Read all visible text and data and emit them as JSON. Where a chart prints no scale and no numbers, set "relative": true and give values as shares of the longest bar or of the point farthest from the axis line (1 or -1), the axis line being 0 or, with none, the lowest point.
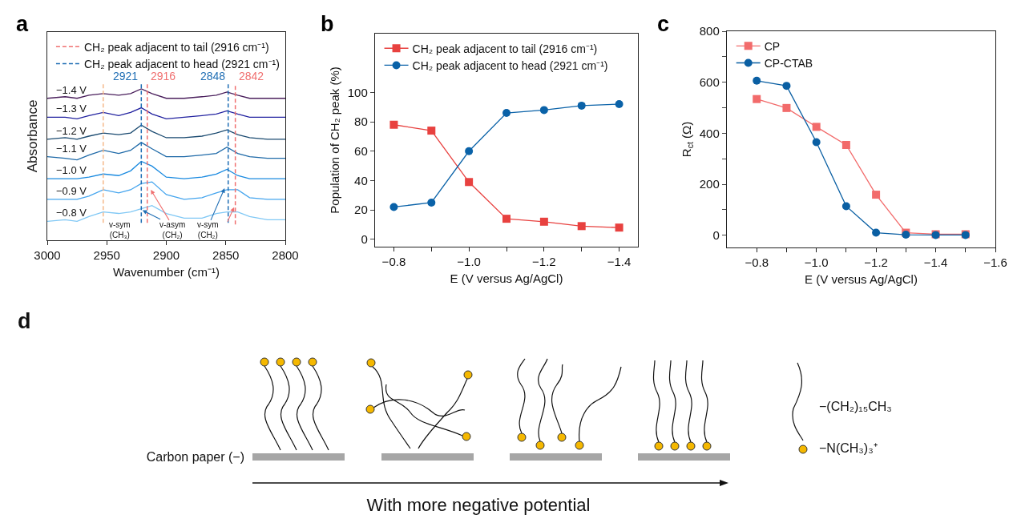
{
  "chart_data": [
    {
      "type": "line",
      "title": "a",
      "xlabel": "Wavenumber (cm⁻¹)",
      "ylabel": "Absorbance",
      "relative": true,
      "marker": "none",
      "legend": "top",
      "x": [
        3000,
        2985,
        2975,
        2965,
        2953,
        2940,
        2930,
        2921,
        2912,
        2900,
        2885,
        2870,
        2858,
        2849,
        2840,
        2830,
        2815,
        2800
      ],
      "xlim": [
        3000,
        2800
      ],
      "xticks": [
        3000,
        2950,
        2900,
        2850,
        2800
      ],
      "series": [
        {
          "name": "−1.4 V",
          "color": "#4a1f5c",
          "values": [
            0.9,
            0.91,
            0.9,
            0.92,
            0.93,
            0.92,
            0.93,
            0.96,
            0.93,
            0.9,
            0.9,
            0.91,
            0.92,
            0.94,
            0.92,
            0.9,
            0.9,
            0.9
          ]
        },
        {
          "name": "−1.3 V",
          "color": "#2222a0",
          "values": [
            0.78,
            0.78,
            0.77,
            0.79,
            0.81,
            0.79,
            0.81,
            0.84,
            0.8,
            0.77,
            0.78,
            0.79,
            0.8,
            0.82,
            0.8,
            0.78,
            0.78,
            0.78
          ]
        },
        {
          "name": "−1.2 V",
          "color": "#1a4a70",
          "values": [
            0.64,
            0.65,
            0.64,
            0.66,
            0.68,
            0.67,
            0.68,
            0.73,
            0.69,
            0.65,
            0.65,
            0.66,
            0.68,
            0.7,
            0.67,
            0.65,
            0.64,
            0.64
          ]
        },
        {
          "name": "−1.1 V",
          "color": "#1f6aa8",
          "values": [
            0.53,
            0.52,
            0.51,
            0.54,
            0.57,
            0.55,
            0.57,
            0.62,
            0.58,
            0.53,
            0.53,
            0.54,
            0.55,
            0.59,
            0.55,
            0.53,
            0.52,
            0.52
          ]
        },
        {
          "name": "−1.0 V",
          "color": "#1a8ae0",
          "values": [
            0.39,
            0.39,
            0.39,
            0.4,
            0.42,
            0.41,
            0.44,
            0.5,
            0.47,
            0.4,
            0.39,
            0.4,
            0.42,
            0.45,
            0.41,
            0.39,
            0.39,
            0.39
          ]
        },
        {
          "name": "−0.9 V",
          "color": "#45a5ee",
          "values": [
            0.26,
            0.26,
            0.26,
            0.28,
            0.32,
            0.3,
            0.32,
            0.36,
            0.37,
            0.29,
            0.26,
            0.27,
            0.3,
            0.32,
            0.32,
            0.27,
            0.26,
            0.26
          ]
        },
        {
          "name": "−0.8 V",
          "color": "#80c8f5",
          "values": [
            0.12,
            0.13,
            0.12,
            0.15,
            0.18,
            0.17,
            0.18,
            0.2,
            0.22,
            0.17,
            0.14,
            0.14,
            0.17,
            0.18,
            0.18,
            0.15,
            0.13,
            0.13
          ]
        },
        {
          "name": "CH₂ peak adjacent to tail (2916 cm⁻¹)",
          "color": "#f07070",
          "line_style": "dashed",
          "x": [
            2916,
            2916,
            null,
            2842,
            2842
          ],
          "values": [
            0.11,
            0.99,
            null,
            0.1,
            0.99
          ]
        },
        {
          "name": "CH₂ peak adjacent to head (2921 cm⁻¹)",
          "color": "#1f6eb4",
          "line_style": "dashed",
          "x": [
            2921,
            2921,
            null,
            2848,
            2848
          ],
          "values": [
            0.11,
            1,
            null,
            0.11,
            1
          ]
        },
        {
          "color": "#f5b98a",
          "line_style": "dashed",
          "x": [
            2953,
            2953
          ],
          "values": [
            0.11,
            1
          ]
        }
      ],
      "annotations": [
        "2921",
        "2916",
        "2848",
        "2842",
        "v-sym\n(CH₃)",
        "v-asym\n(CH₂)",
        "v-sym\n(CH₂)"
      ]
    },
    {
      "type": "line",
      "title": "b",
      "xlabel": "E (V versus Ag/AgCl)",
      "ylabel": "Population of CH₂ peak (%)",
      "legend": "top left",
      "x": [
        -0.8,
        -0.9,
        -1.0,
        -1.1,
        -1.2,
        -1.3,
        -1.4
      ],
      "xlim": [
        -0.75,
        -1.45
      ],
      "xticks": [
        {
          "value": -0.8,
          "label": "−0.8"
        },
        {
          "value": -0.9,
          "label": null
        },
        {
          "value": -1.0,
          "label": "−1.0"
        },
        {
          "value": -1.1,
          "label": null
        },
        {
          "value": -1.2,
          "label": "−1.2"
        },
        {
          "value": -1.3,
          "label": null
        },
        {
          "value": -1.4,
          "label": "−1.4"
        }
      ],
      "ylim": [
        -5,
        140
      ],
      "yticks": [
        0,
        20,
        40,
        60,
        80,
        100
      ],
      "series": [
        {
          "name": "CH₂ peak adjacent to tail (2916 cm⁻¹)",
          "color": "#e8413f",
          "marker": "square",
          "values": [
            78,
            74,
            39,
            14,
            12,
            9,
            8
          ]
        },
        {
          "name": "CH₂ peak adjacent to head (2921 cm⁻¹)",
          "color": "#0a62a8",
          "marker": "circle",
          "values": [
            22,
            25,
            60,
            86,
            88,
            91,
            92
          ]
        }
      ]
    },
    {
      "type": "line",
      "title": "c",
      "xlabel": "E (V versus Ag/AgCl)",
      "ylabel": "R$_{ct}$ (Ω)",
      "legend": "top left",
      "x": [
        -0.8,
        -0.9,
        -1.0,
        -1.1,
        -1.2,
        -1.3,
        -1.4,
        -1.5
      ],
      "xlim": [
        -0.7,
        -1.6
      ],
      "xticks": [
        {
          "value": -0.8,
          "label": "−0.8"
        },
        {
          "value": -0.9,
          "label": null
        },
        {
          "value": -1.0,
          "label": "−1.0"
        },
        {
          "value": -1.1,
          "label": null
        },
        {
          "value": -1.2,
          "label": "−1.2"
        },
        {
          "value": -1.3,
          "label": null
        },
        {
          "value": -1.4,
          "label": "−1.4"
        },
        {
          "value": -1.5,
          "label": null
        },
        {
          "value": -1.6,
          "label": "−1.6"
        }
      ],
      "ylim": [
        -48,
        800
      ],
      "yticks": [
        0,
        {
          "value": 100,
          "label": null
        },
        200,
        {
          "value": 300,
          "label": null
        },
        400,
        {
          "value": 500,
          "label": null
        },
        600,
        {
          "value": 700,
          "label": null
        },
        800
      ],
      "series": [
        {
          "name": "CP",
          "color": "#f26b6b",
          "marker": "square",
          "values": [
            534,
            499,
            425,
            354,
            159,
            10,
            4,
            4
          ]
        },
        {
          "name": "CP-CTAB",
          "color": "#0a5fa3",
          "marker": "circle",
          "values": [
            606,
            586,
            365,
            114,
            10,
            2,
            1,
            1
          ]
        }
      ]
    },
    {
      "type": "other",
      "title": "d",
      "annotations": [
        "Carbon paper (−)",
        "With more negative potential",
        "−(CH₂)₁₅CH₃",
        "−N(CH₃)₃⁺"
      ]
    }
  ]
}
